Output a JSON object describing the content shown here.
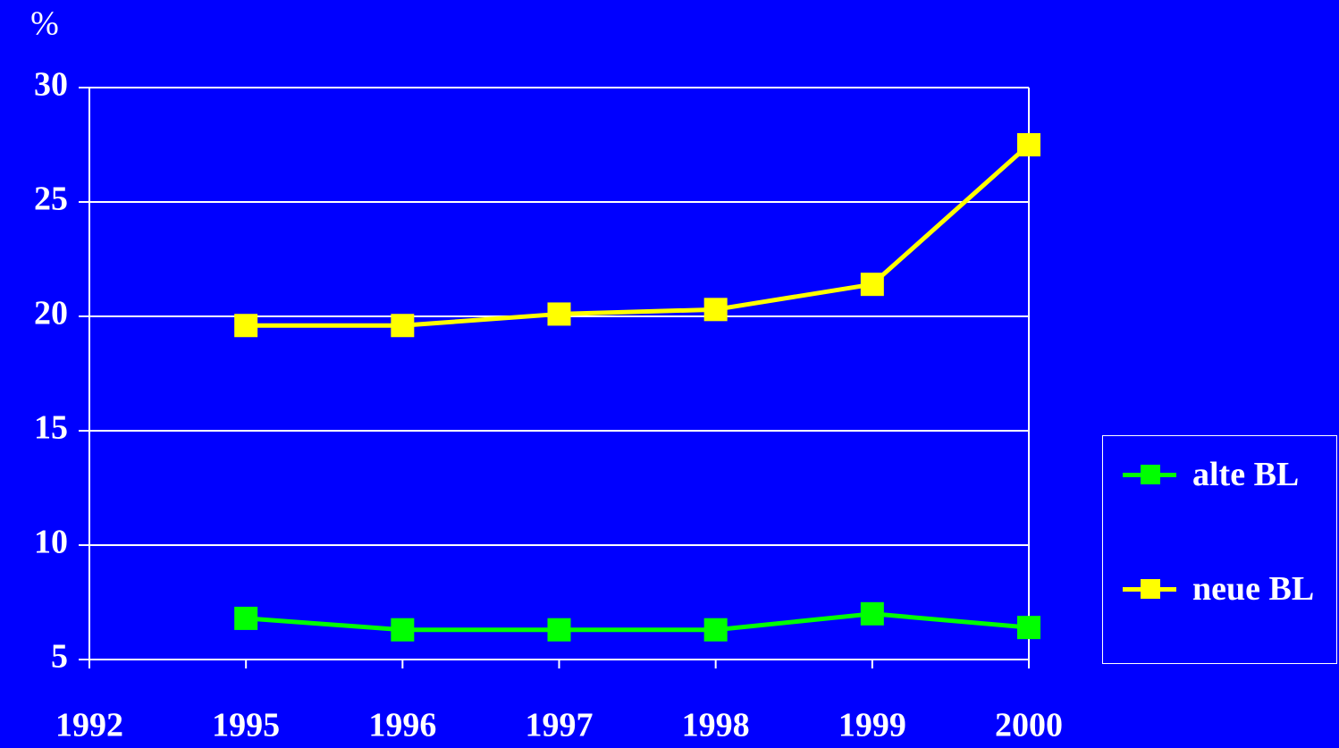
{
  "chart_data": {
    "type": "line",
    "y_label": "%",
    "categories": [
      "1992",
      "1995",
      "1996",
      "1997",
      "1998",
      "1999",
      "2000"
    ],
    "series": [
      {
        "name": "alte BL",
        "color": "#00ff00",
        "values": [
          null,
          6.8,
          6.3,
          6.3,
          6.3,
          7.0,
          6.4
        ]
      },
      {
        "name": "neue BL",
        "color": "#ffff00",
        "values": [
          null,
          19.6,
          19.6,
          20.1,
          20.3,
          21.4,
          27.5
        ]
      }
    ],
    "ylim": [
      5,
      30
    ],
    "yticks": [
      5,
      10,
      15,
      20,
      25,
      30
    ],
    "grid": true,
    "legend": "right"
  }
}
